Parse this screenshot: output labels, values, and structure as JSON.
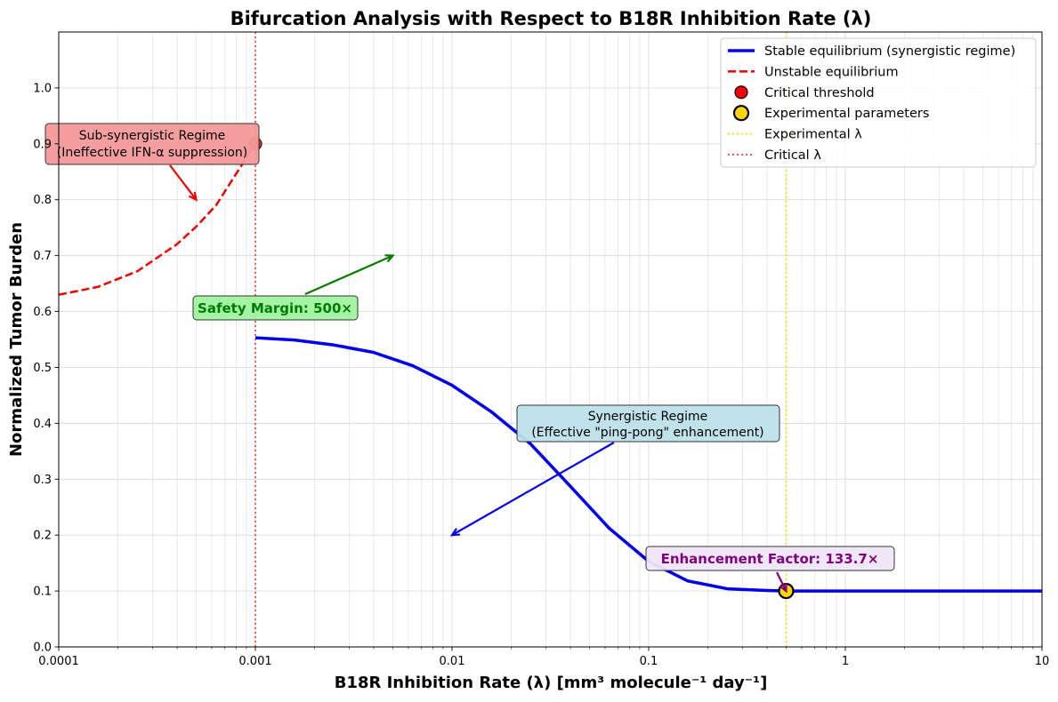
{
  "chart_data": {
    "type": "line",
    "title": "Bifurcation Analysis with Respect to B18R Inhibition Rate (λ)",
    "xlabel": "B18R Inhibition Rate (λ) [mm³ molecule⁻¹ day⁻¹]",
    "ylabel": "Normalized Tumor Burden",
    "xscale": "log",
    "xlim": [
      0.0001,
      10
    ],
    "ylim": [
      0,
      1.1
    ],
    "x_ticks": [
      0.0001,
      0.001,
      0.01,
      0.1,
      1,
      10
    ],
    "x_tick_labels": [
      "0.0001",
      "0.001",
      "0.01",
      "0.1",
      "1",
      "10"
    ],
    "y_ticks": [
      0.0,
      0.1,
      0.2,
      0.3,
      0.4,
      0.5,
      0.6,
      0.7,
      0.8,
      0.9,
      1.0
    ],
    "y_tick_labels": [
      "0.0",
      "0.1",
      "0.2",
      "0.3",
      "0.4",
      "0.5",
      "0.6",
      "0.7",
      "0.8",
      "0.9",
      "1.0"
    ],
    "grid": true,
    "series": [
      {
        "name": "Stable equilibrium (synergistic regime)",
        "color": "#0000ee",
        "style": "solid",
        "points": [
          [
            0.001,
            0.553
          ],
          [
            0.00158,
            0.549
          ],
          [
            0.00251,
            0.54
          ],
          [
            0.00398,
            0.527
          ],
          [
            0.00631,
            0.503
          ],
          [
            0.01,
            0.468
          ],
          [
            0.0158,
            0.421
          ],
          [
            0.0251,
            0.363
          ],
          [
            0.0398,
            0.288
          ],
          [
            0.0631,
            0.212
          ],
          [
            0.1,
            0.153
          ],
          [
            0.158,
            0.118
          ],
          [
            0.251,
            0.104
          ],
          [
            0.398,
            0.101
          ],
          [
            0.5,
            0.1
          ],
          [
            1,
            0.1
          ],
          [
            10,
            0.1
          ]
        ]
      },
      {
        "name": "Unstable equilibrium",
        "color": "#ee0000",
        "style": "dashed",
        "points": [
          [
            0.0001,
            0.63
          ],
          [
            0.000158,
            0.644
          ],
          [
            0.000251,
            0.672
          ],
          [
            0.000398,
            0.72
          ],
          [
            0.000501,
            0.752
          ],
          [
            0.000631,
            0.79
          ],
          [
            0.000794,
            0.845
          ],
          [
            0.001,
            0.9
          ]
        ]
      }
    ],
    "points": [
      {
        "name": "Critical threshold",
        "x": 0.001,
        "y": 0.9,
        "color": "#ee0000"
      },
      {
        "name": "Experimental parameters",
        "x": 0.5,
        "y": 0.1,
        "color": "#ffd700"
      }
    ],
    "vlines": [
      {
        "name": "Experimental λ",
        "x": 0.5,
        "color": "#ffd700"
      },
      {
        "name": "Critical λ",
        "x": 0.001,
        "color": "#ee3333"
      }
    ],
    "annotations": [
      {
        "id": "sub",
        "lines": [
          "Sub-synergistic Regime",
          "(Ineffective IFN-α suppression)"
        ],
        "anchor_x": 0.0005,
        "anchor_y": 0.8,
        "color": "#ee0000",
        "box_color": "#f4999a",
        "bold": false
      },
      {
        "id": "safety",
        "lines": [
          "Safety Margin: 500×"
        ],
        "anchor_x": 0.005,
        "anchor_y": 0.7,
        "color": "#007a00",
        "box_color": "#a0f2a0",
        "bold": true
      },
      {
        "id": "syn",
        "lines": [
          "Synergistic Regime",
          "(Effective \"ping-pong\" enhancement)"
        ],
        "anchor_x": 0.01,
        "anchor_y": 0.2,
        "color": "#0000ee",
        "box_color": "#bce0ea",
        "bold": false
      },
      {
        "id": "enh",
        "lines": [
          "Enhancement Factor: 133.7×"
        ],
        "anchor_x": 0.5,
        "anchor_y": 0.1,
        "color": "#800080",
        "box_color": "#efe6f8",
        "bold": true
      }
    ],
    "legend": {
      "position": "top-right",
      "entries": [
        {
          "label": "Stable equilibrium (synergistic regime)",
          "kind": "line",
          "color": "#0000ee",
          "style": "solid"
        },
        {
          "label": "Unstable equilibrium",
          "kind": "line",
          "color": "#ee0000",
          "style": "dashed"
        },
        {
          "label": "Critical threshold",
          "kind": "marker",
          "color": "#ee0000"
        },
        {
          "label": "Experimental parameters",
          "kind": "marker",
          "color": "#ffd700"
        },
        {
          "label": "Experimental λ",
          "kind": "line",
          "color": "#ffd700",
          "style": "dotted"
        },
        {
          "label": "Critical λ",
          "kind": "line",
          "color": "#ee3333",
          "style": "dotted"
        }
      ]
    }
  }
}
